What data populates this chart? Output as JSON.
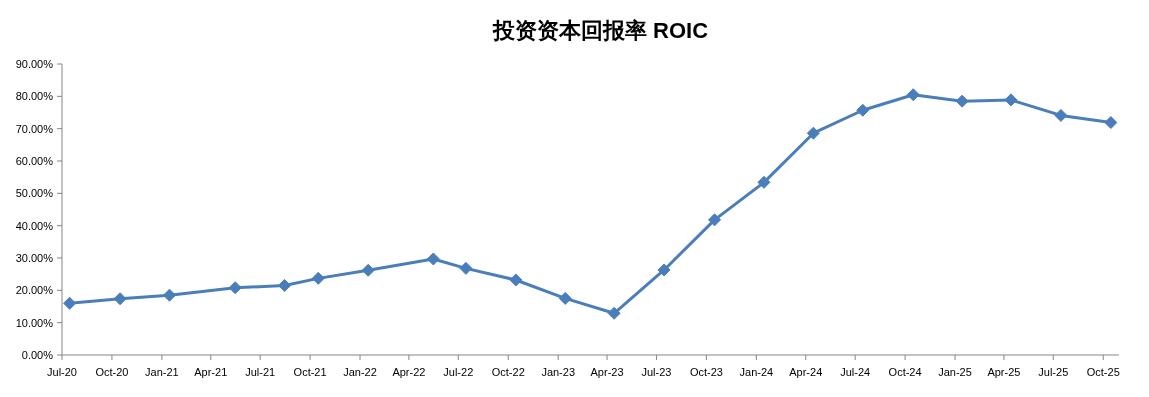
{
  "chart_data": {
    "type": "line",
    "title": "投资资本回报率 ROIC",
    "x": [
      "2020-07-15",
      "2020-10-16",
      "2021-01-15",
      "2021-05-16",
      "2021-08-15",
      "2021-10-16",
      "2022-01-16",
      "2022-05-16",
      "2022-07-15",
      "2022-10-15",
      "2023-01-14",
      "2023-04-14",
      "2023-07-15",
      "2023-10-16",
      "2024-01-15",
      "2024-04-15",
      "2024-07-15",
      "2024-10-16",
      "2025-01-14",
      "2025-04-14",
      "2025-07-15",
      "2025-10-15"
    ],
    "series": [
      {
        "color": "#4a7ebb",
        "values": [
          16.0,
          17.4,
          18.5,
          20.8,
          21.5,
          23.7,
          26.2,
          29.7,
          26.8,
          23.2,
          17.5,
          12.9,
          26.3,
          41.8,
          53.4,
          68.6,
          75.7,
          80.5,
          78.5,
          78.9,
          74.1,
          71.9
        ]
      }
    ],
    "xlim": [
      "2020-07-01",
      "2025-10-30"
    ],
    "xticks": [
      {
        "value": "2020-07-01",
        "label": "Jul-20"
      },
      {
        "value": "2020-10-01",
        "label": "Oct-20"
      },
      {
        "value": "2021-01-01",
        "label": "Jan-21"
      },
      {
        "value": "2021-04-01",
        "label": "Apr-21"
      },
      {
        "value": "2021-07-01",
        "label": "Jul-21"
      },
      {
        "value": "2021-10-01",
        "label": "Oct-21"
      },
      {
        "value": "2022-01-01",
        "label": "Jan-22"
      },
      {
        "value": "2022-04-01",
        "label": "Apr-22"
      },
      {
        "value": "2022-07-01",
        "label": "Jul-22"
      },
      {
        "value": "2022-10-01",
        "label": "Oct-22"
      },
      {
        "value": "2023-01-01",
        "label": "Jan-23"
      },
      {
        "value": "2023-04-01",
        "label": "Apr-23"
      },
      {
        "value": "2023-07-01",
        "label": "Jul-23"
      },
      {
        "value": "2023-10-01",
        "label": "Oct-23"
      },
      {
        "value": "2024-01-01",
        "label": "Jan-24"
      },
      {
        "value": "2024-04-01",
        "label": "Apr-24"
      },
      {
        "value": "2024-07-01",
        "label": "Jul-24"
      },
      {
        "value": "2024-10-01",
        "label": "Oct-24"
      },
      {
        "value": "2025-01-01",
        "label": "Jan-25"
      },
      {
        "value": "2025-04-01",
        "label": "Apr-25"
      },
      {
        "value": "2025-07-01",
        "label": "Jul-25"
      },
      {
        "value": "2025-10-01",
        "label": "Oct-25"
      }
    ],
    "ylim": [
      0,
      90
    ],
    "yticks": [
      {
        "value": 0,
        "label": "0.00%"
      },
      {
        "value": 10,
        "label": "10.00%"
      },
      {
        "value": 20,
        "label": "20.00%"
      },
      {
        "value": 30,
        "label": "30.00%"
      },
      {
        "value": 40,
        "label": "40.00%"
      },
      {
        "value": 50,
        "label": "50.00%"
      },
      {
        "value": 60,
        "label": "60.00%"
      },
      {
        "value": 70,
        "label": "70.00%"
      },
      {
        "value": 80,
        "label": "80.00%"
      },
      {
        "value": 90,
        "label": "90.00%"
      }
    ],
    "marker": "diamond",
    "line_style": "solid"
  }
}
